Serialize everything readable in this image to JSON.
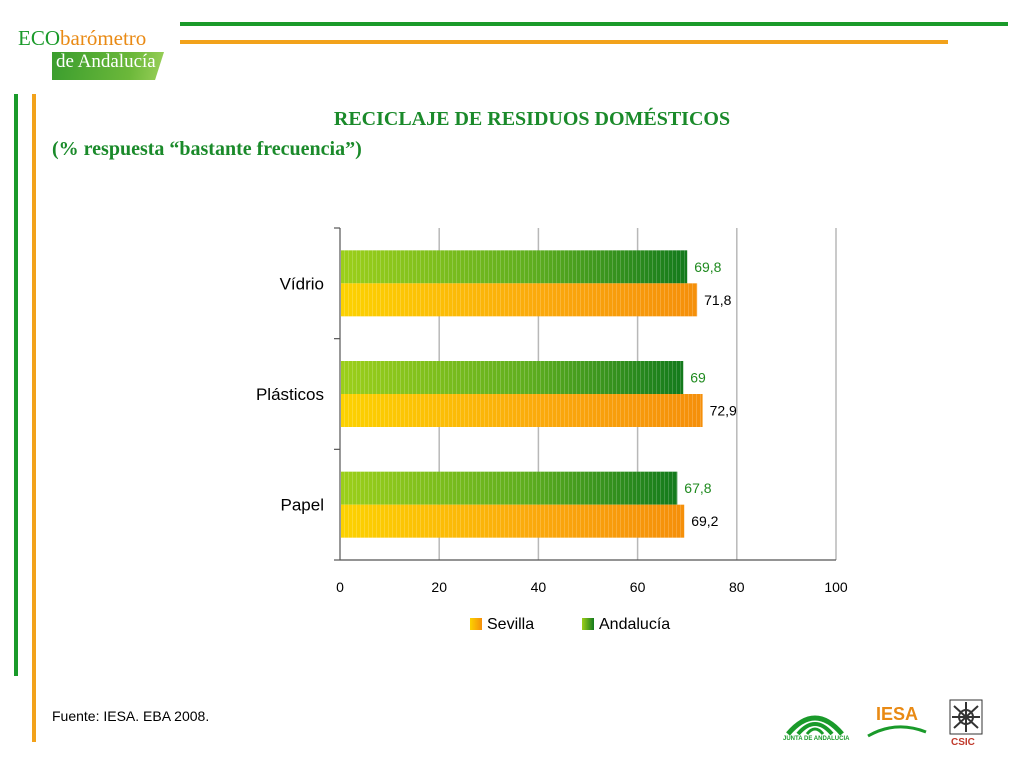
{
  "header": {
    "logo_eco": "ECO",
    "logo_barometro": "barómetro",
    "logo_andalucia": "de Andalucía"
  },
  "title": {
    "line1": "RECICLAJE DE RESIDUOS DOMÉSTICOS",
    "line2": "(% respuesta “bastante frecuencia”)"
  },
  "colors": {
    "green_accent": "#1a9a2a",
    "orange_accent": "#f2a21b",
    "sevilla": "#f7a21b",
    "andalucia": "#2f9a1c"
  },
  "chart_data": {
    "type": "bar",
    "orientation": "horizontal",
    "categories": [
      "Vídrio",
      "Plásticos",
      "Papel"
    ],
    "series": [
      {
        "name": "Andalucía",
        "values": [
          69.8,
          69,
          67.8
        ],
        "labels": [
          "69,8",
          "69",
          "67,8"
        ],
        "color": "#2f9a1c"
      },
      {
        "name": "Sevilla",
        "values": [
          71.8,
          72.9,
          69.2
        ],
        "labels": [
          "71,8",
          "72,9",
          "69,2"
        ],
        "color": "#f7a21b"
      }
    ],
    "xlim": [
      0,
      100
    ],
    "xticks": [
      0,
      20,
      40,
      60,
      80,
      100
    ],
    "grid": true,
    "legend_position": "bottom",
    "legend": [
      "Sevilla",
      "Andalucía"
    ]
  },
  "footer": {
    "source": "Fuente: IESA. EBA 2008.",
    "junta_label": "JUNTA DE ANDALUCIA",
    "iesa_label": "IESA",
    "csic_label": "CSIC"
  }
}
